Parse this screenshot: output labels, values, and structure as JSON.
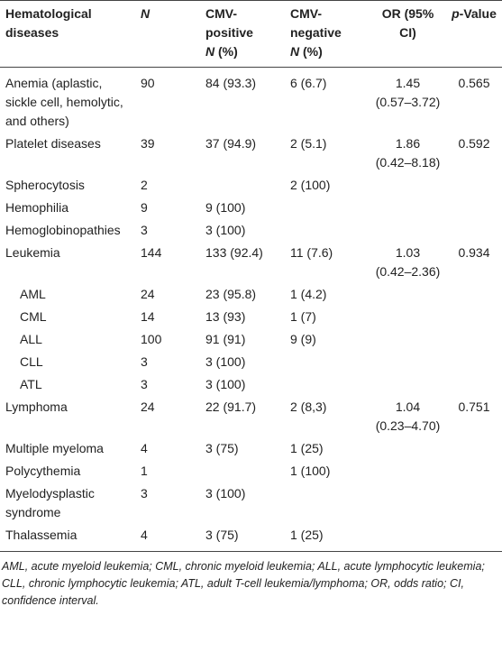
{
  "table": {
    "header": [
      {
        "label": "Hematological diseases"
      },
      {
        "var": "N"
      },
      {
        "label": "CMV-positive",
        "var": "N",
        "unit": "(%)"
      },
      {
        "label": "CMV-negative",
        "var": "N",
        "unit": "(%)"
      },
      {
        "label": "OR (95% CI)"
      },
      {
        "var": "p",
        "label": "-Value"
      }
    ],
    "rows": [
      {
        "name": "Anemia (aplastic, sickle cell, hemolytic, and others)",
        "n": "90",
        "pos": "84 (93.3)",
        "neg": "6 (6.7)",
        "or": "1.45",
        "ci": "(0.57–3.72)",
        "p": "0.565"
      },
      {
        "name": "Platelet diseases",
        "n": "39",
        "pos": "37 (94.9)",
        "neg": "2 (5.1)",
        "or": "1.86",
        "ci": "(0.42–8.18)",
        "p": "0.592"
      },
      {
        "name": "Spherocytosis",
        "n": "2",
        "pos": null,
        "neg": "2 (100)",
        "or": null,
        "ci": null,
        "p": null
      },
      {
        "name": "Hemophilia",
        "n": "9",
        "pos": "9 (100)",
        "neg": null,
        "or": null,
        "ci": null,
        "p": null
      },
      {
        "name": "Hemoglobinopathies",
        "n": "3",
        "pos": "3 (100)",
        "neg": null,
        "or": null,
        "ci": null,
        "p": null
      },
      {
        "name": "Leukemia",
        "n": "144",
        "pos": "133 (92.4)",
        "neg": "11 (7.6)",
        "or": "1.03",
        "ci": "(0.42–2.36)",
        "p": "0.934"
      },
      {
        "name": "AML",
        "indent": true,
        "n": "24",
        "pos": "23 (95.8)",
        "neg": "1 (4.2)",
        "or": null,
        "ci": null,
        "p": null
      },
      {
        "name": "CML",
        "indent": true,
        "n": "14",
        "pos": "13 (93)",
        "neg": "1 (7)",
        "or": null,
        "ci": null,
        "p": null
      },
      {
        "name": "ALL",
        "indent": true,
        "n": "100",
        "pos": "91 (91)",
        "neg": "9 (9)",
        "or": null,
        "ci": null,
        "p": null
      },
      {
        "name": "CLL",
        "indent": true,
        "n": "3",
        "pos": "3 (100)",
        "neg": null,
        "or": null,
        "ci": null,
        "p": null
      },
      {
        "name": "ATL",
        "indent": true,
        "n": "3",
        "pos": "3 (100)",
        "neg": null,
        "or": null,
        "ci": null,
        "p": null
      },
      {
        "name": "Lymphoma",
        "n": "24",
        "pos": "22 (91.7)",
        "neg": "2 (8,3)",
        "or": "1.04",
        "ci": "(0.23–4.70)",
        "p": "0.751"
      },
      {
        "name": "Multiple myeloma",
        "n": "4",
        "pos": "3 (75)",
        "neg": "1 (25)",
        "or": null,
        "ci": null,
        "p": null
      },
      {
        "name": "Polycythemia",
        "n": "1",
        "pos": null,
        "neg": "1 (100)",
        "or": null,
        "ci": null,
        "p": null
      },
      {
        "name": "Myelodysplastic syndrome",
        "n": "3",
        "pos": "3 (100)",
        "neg": null,
        "or": null,
        "ci": null,
        "p": null
      },
      {
        "name": "Thalassemia",
        "n": "4",
        "pos": "3 (75)",
        "neg": "1 (25)",
        "or": null,
        "ci": null,
        "p": null
      }
    ]
  },
  "footnote": "AML, acute myeloid leukemia; CML, chronic myeloid leukemia; ALL, acute lymphocytic leukemia; CLL, chronic lymphocytic leukemia; ATL, adult T-cell leukemia/lymphoma; OR, odds ratio; CI, confidence interval."
}
